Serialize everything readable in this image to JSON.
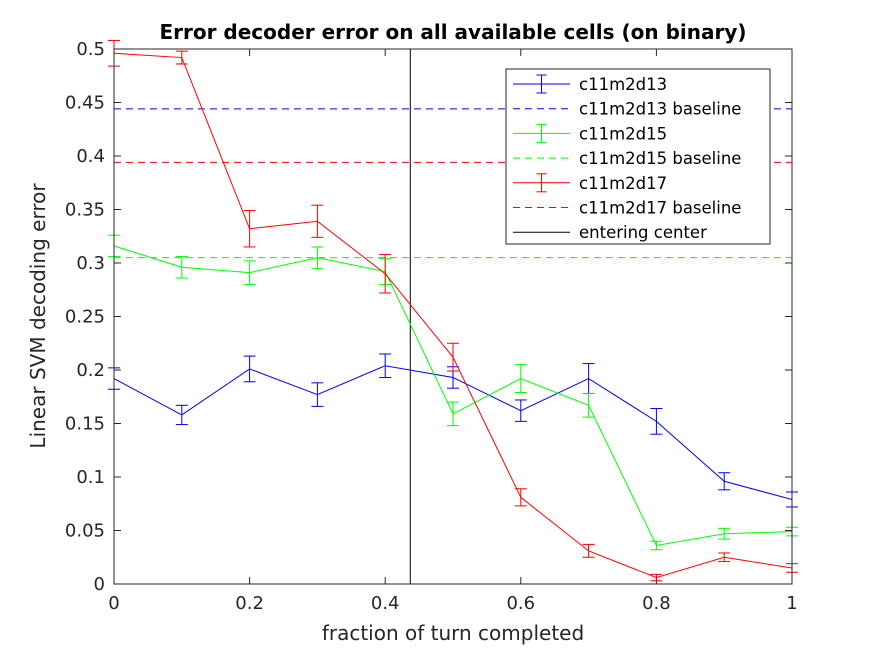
{
  "chart_data": {
    "type": "line",
    "title": "Error decoder error on all available cells (on binary)",
    "xlabel": "fraction of turn completed",
    "ylabel": "Linear SVM decoding error",
    "xlim": [
      0,
      1
    ],
    "ylim": [
      0,
      0.5
    ],
    "xticks": [
      0,
      0.2,
      0.4,
      0.6,
      0.8,
      1
    ],
    "xtick_labels": [
      "0",
      "0.2",
      "0.4",
      "0.6",
      "0.8",
      "1"
    ],
    "yticks": [
      0,
      0.05,
      0.1,
      0.15,
      0.2,
      0.25,
      0.3,
      0.35,
      0.4,
      0.45,
      0.5
    ],
    "ytick_labels": [
      "0",
      "0.05",
      "0.1",
      "0.15",
      "0.2",
      "0.25",
      "0.3",
      "0.35",
      "0.4",
      "0.45",
      "0.5"
    ],
    "x": [
      0,
      0.1,
      0.2,
      0.3,
      0.4,
      0.5,
      0.6,
      0.7,
      0.8,
      0.9,
      1
    ],
    "series": [
      {
        "name": "c11m2d13",
        "color": "#0000ff",
        "values": [
          0.192,
          0.158,
          0.201,
          0.177,
          0.204,
          0.193,
          0.162,
          0.192,
          0.152,
          0.096,
          0.079
        ],
        "errors": [
          0.01,
          0.009,
          0.012,
          0.011,
          0.011,
          0.01,
          0.01,
          0.014,
          0.012,
          0.008,
          0.007
        ],
        "baseline": 0.444,
        "baseline_name": "c11m2d13 baseline"
      },
      {
        "name": "c11m2d15",
        "color": "#00ff00",
        "values": [
          0.316,
          0.296,
          0.291,
          0.305,
          0.292,
          0.159,
          0.192,
          0.167,
          0.036,
          0.047,
          0.049
        ],
        "errors": [
          0.01,
          0.01,
          0.011,
          0.01,
          0.012,
          0.011,
          0.013,
          0.011,
          0.004,
          0.005,
          0.004
        ],
        "baseline": 0.305,
        "baseline_name": "c11m2d15 baseline"
      },
      {
        "name": "c11m2d17",
        "color": "#ff0000",
        "values": [
          0.496,
          0.492,
          0.332,
          0.339,
          0.29,
          0.212,
          0.081,
          0.031,
          0.006,
          0.025,
          0.015
        ],
        "errors": [
          0.012,
          0.006,
          0.017,
          0.015,
          0.018,
          0.013,
          0.008,
          0.006,
          0.003,
          0.004,
          0.004
        ],
        "baseline": 0.394,
        "baseline_name": "c11m2d17 baseline"
      }
    ],
    "vline": {
      "x": 0.437,
      "name": "entering center",
      "color": "#000000"
    },
    "legend": {
      "placement": "top-right",
      "entries": [
        "c11m2d13",
        "c11m2d13 baseline",
        "c11m2d15",
        "c11m2d15 baseline",
        "c11m2d17",
        "c11m2d17 baseline",
        "entering center"
      ]
    }
  }
}
